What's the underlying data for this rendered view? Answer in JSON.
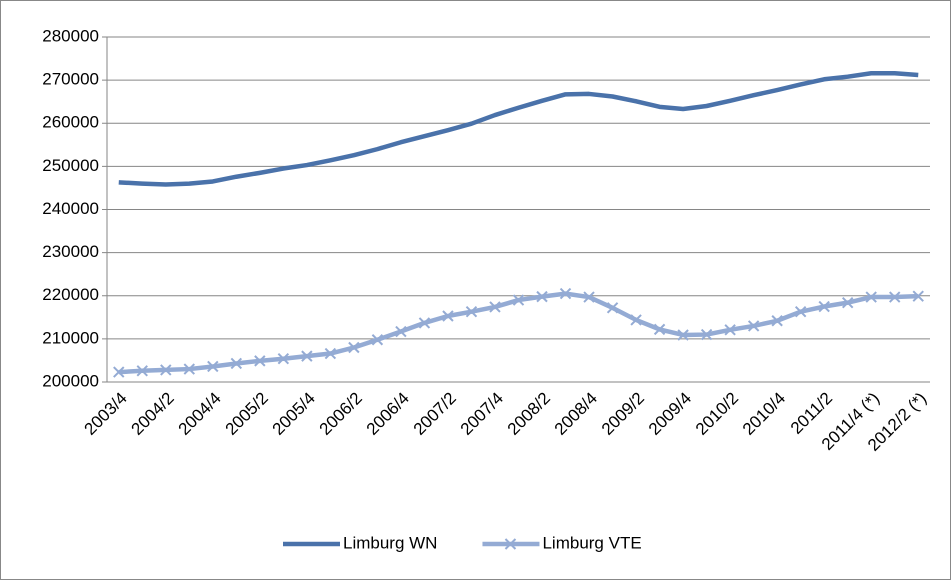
{
  "chart_data": {
    "type": "line",
    "categories": [
      "2003/4",
      null,
      "2004/2",
      null,
      "2004/4",
      null,
      "2005/2",
      null,
      "2005/4",
      null,
      "2006/2",
      null,
      "2006/4",
      null,
      "2007/2",
      null,
      "2007/4",
      null,
      "2008/2",
      null,
      "2008/4",
      null,
      "2009/2",
      null,
      "2009/4",
      null,
      "2010/2",
      null,
      "2010/4",
      null,
      "2011/2",
      null,
      "2011/4 (*)",
      null,
      "2012/2 (*)"
    ],
    "series": [
      {
        "name": "Limburg WN",
        "color": "#4a72aa",
        "marker": "none",
        "values": [
          246300,
          246000,
          245800,
          246000,
          246500,
          247600,
          248500,
          249500,
          250300,
          251400,
          252600,
          254000,
          255600,
          257000,
          258400,
          259900,
          261900,
          263600,
          265200,
          266700,
          266800,
          266200,
          265100,
          263800,
          263300,
          264000,
          265200,
          266500,
          267700,
          269000,
          270200,
          270800,
          271600,
          271600,
          271200
        ]
      },
      {
        "name": "Limburg VTE",
        "color": "#94abd4",
        "marker": "x",
        "values": [
          202300,
          202600,
          202800,
          203000,
          203600,
          204300,
          204900,
          205400,
          206000,
          206600,
          208000,
          209800,
          211700,
          213700,
          215300,
          216300,
          217400,
          219000,
          219800,
          220500,
          219700,
          217200,
          214400,
          212200,
          210900,
          211000,
          212100,
          213000,
          214200,
          216300,
          217500,
          218400,
          219700,
          219700,
          219900
        ]
      }
    ],
    "ylim": [
      200000,
      280000
    ],
    "yticks": [
      200000,
      210000,
      220000,
      230000,
      240000,
      250000,
      260000,
      270000,
      280000
    ],
    "grid": true,
    "legend": "bottom"
  }
}
